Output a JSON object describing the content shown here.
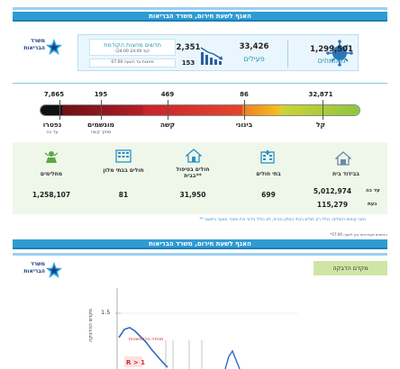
{
  "banner": {
    "title": "האגף לשעת חירום, משרד הבריאות"
  },
  "logo": {
    "text_line1": "משרד",
    "text_line2": "הבריאות"
  },
  "summary": {
    "confirmed_value": "1,299,501",
    "confirmed_label": "מאומתים",
    "active_value": "33,426",
    "active_label": "פעילים",
    "hosp_value": "2,351",
    "hosp_label": "חדשים מחצות הקודמת",
    "hosp_sub": "(24:00 עד 24:00)",
    "since_value": "153",
    "since_label": "מחצות עד השעה 07:00"
  },
  "severity": {
    "items": [
      {
        "value": "32,871",
        "label": "קל",
        "sub": ""
      },
      {
        "value": "86",
        "label": "בינוני",
        "sub": ""
      },
      {
        "value": "469",
        "label": "קשה",
        "sub": ""
      },
      {
        "value": "195",
        "label": "מונשמים",
        "sub": "מתוך קשה"
      },
      {
        "value": "7,865",
        "label": "נפטרו",
        "sub": "עד כה"
      }
    ],
    "colors": {
      "mild": "#8ec63f",
      "moderate": "#f5b21b",
      "severe": "#d7262f",
      "ventilated": "#9e1b20",
      "deceased": "#111111"
    }
  },
  "locations": {
    "isolation_label": "בבידוד בית",
    "isolation_now_label": "עד כה",
    "isolation_now_value": "5,012,974",
    "isolation_current_label": "כעת",
    "isolation_current_value": "115,279",
    "hospitals_label": "בתי חולים",
    "hospitals_value": "699",
    "home_label": "חולים בטיפול בבית**",
    "home_value": "31,950",
    "hotels_label": "חולים בבתי מלון",
    "hotels_value": "81",
    "recovered_label": "מחלימים",
    "recovered_value": "1,258,107",
    "footnote": "** נתוני קופות החולים. כולל רק חולים בבתי המלון ובבית, לא כולל בידוד בית וחוזרי מצעד ביתשה"
  },
  "footer_small": "*הנתונים מעודכנים נכון לשעה 07:00",
  "chart": {
    "title_box": "מקדם הדבקה",
    "y_tick": "1.5",
    "annotation_red": "מגיפה בהתפשטות",
    "annotation_r": "R > 1",
    "ylabel": "מקדם ההדבקה",
    "color": "#2b6cc4"
  }
}
